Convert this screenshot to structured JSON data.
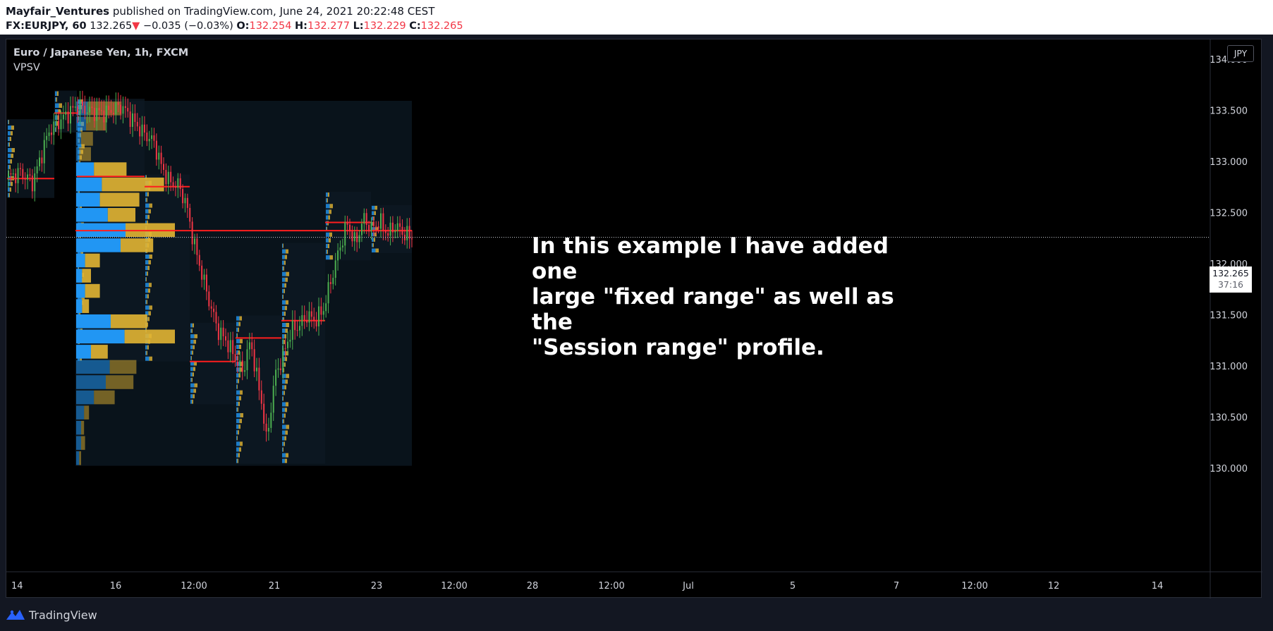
{
  "header": {
    "author": "Mayfair_Ventures",
    "published_text": " published on TradingView.com, June 24, 2021 20:22:48 CEST",
    "symbol": "FX:EURJPY, 60",
    "last_price": "132.265",
    "arrow": "▼",
    "change": "−0.035 (−0.03%)",
    "open_label": "O:",
    "open_value": "132.254",
    "high_label": "H:",
    "high_value": "132.277",
    "low_label": "L:",
    "low_value": "132.229",
    "close_label": "C:",
    "close_value": "132.265"
  },
  "legend": {
    "title": "Euro / Japanese Yen, 1h, FXCM",
    "indicator": "VPSV"
  },
  "annotation": {
    "lines": [
      "In this example I have added one",
      "large \"fixed range\" as well as the",
      "\"Session range\" profile."
    ]
  },
  "price_scale": {
    "currency_button": "JPY",
    "current_price": "132.265",
    "countdown": "37:16"
  },
  "footer": {
    "brand": "TradingView"
  },
  "colors": {
    "up": "#26a69a",
    "candle_up": "#4caf50",
    "candle_down": "#f23645",
    "poc": "#ff1e1e",
    "volume_up": "#2196f3",
    "volume_down": "#e2b533",
    "background": "#000000"
  },
  "chart_data": {
    "type": "candlestick",
    "title": "Euro / Japanese Yen, 1h, FXCM",
    "indicator": "VPSV",
    "y_axis": {
      "ticks": [
        "134.000",
        "133.500",
        "133.000",
        "132.500",
        "132.000",
        "131.500",
        "131.000",
        "130.500",
        "130.000"
      ],
      "ylim": [
        129.75,
        134.2
      ]
    },
    "x_axis": {
      "ticks": [
        "14",
        "16",
        "12:00",
        "21",
        "23",
        "12:00",
        "28",
        "12:00",
        "Jul",
        "5",
        "7",
        "12:00",
        "12",
        "14"
      ]
    },
    "last_price": 132.265,
    "fixed_range_profile": {
      "poc_price": 132.33,
      "rows": [
        {
          "price": 133.48,
          "up": 0.12,
          "down": 0.34
        },
        {
          "price": 133.34,
          "up": 0.1,
          "down": 0.2
        },
        {
          "price": 133.2,
          "up": 0.05,
          "down": 0.12
        },
        {
          "price": 133.06,
          "up": 0.03,
          "down": 0.12
        },
        {
          "price": 132.92,
          "up": 0.18,
          "down": 0.33
        },
        {
          "price": 132.77,
          "up": 0.26,
          "down": 0.63
        },
        {
          "price": 132.63,
          "up": 0.24,
          "down": 0.4
        },
        {
          "price": 132.48,
          "up": 0.32,
          "down": 0.28
        },
        {
          "price": 132.33,
          "up": 0.5,
          "down": 0.5
        },
        {
          "price": 132.18,
          "up": 0.45,
          "down": 0.33
        },
        {
          "price": 132.03,
          "up": 0.09,
          "down": 0.15
        },
        {
          "price": 131.88,
          "up": 0.06,
          "down": 0.09
        },
        {
          "price": 131.73,
          "up": 0.09,
          "down": 0.15
        },
        {
          "price": 131.58,
          "up": 0.06,
          "down": 0.07
        },
        {
          "price": 131.43,
          "up": 0.35,
          "down": 0.37
        },
        {
          "price": 131.28,
          "up": 0.49,
          "down": 0.51
        },
        {
          "price": 131.13,
          "up": 0.15,
          "down": 0.17
        },
        {
          "price": 130.98,
          "up": 0.34,
          "down": 0.27
        },
        {
          "price": 130.84,
          "up": 0.3,
          "down": 0.28
        },
        {
          "price": 130.69,
          "up": 0.18,
          "down": 0.21
        },
        {
          "price": 130.54,
          "up": 0.08,
          "down": 0.05
        },
        {
          "price": 130.4,
          "up": 0.05,
          "down": 0.03
        },
        {
          "price": 130.25,
          "up": 0.05,
          "down": 0.04
        },
        {
          "price": 130.1,
          "up": 0.03,
          "down": 0.02
        }
      ]
    },
    "session_profiles": [
      {
        "top": 133.42,
        "bottom": 132.65,
        "poc": 132.84
      },
      {
        "top": 133.7,
        "bottom": 133.29,
        "poc": 133.48
      },
      {
        "top": 133.62,
        "bottom": 131.05,
        "poc": 132.86
      },
      {
        "top": 132.88,
        "bottom": 131.05,
        "poc": 132.76
      },
      {
        "top": 131.43,
        "bottom": 130.63,
        "poc": 131.05
      },
      {
        "top": 131.5,
        "bottom": 130.05,
        "poc": 131.28
      },
      {
        "top": 132.21,
        "bottom": 130.05,
        "poc": 131.45
      },
      {
        "top": 132.71,
        "bottom": 132.04,
        "poc": 132.41
      },
      {
        "top": 132.58,
        "bottom": 132.11,
        "poc": 132.33
      }
    ],
    "close_path": [
      {
        "t": 0.0,
        "p": 132.85
      },
      {
        "t": 0.03,
        "p": 132.9
      },
      {
        "t": 0.06,
        "p": 132.8
      },
      {
        "t": 0.1,
        "p": 133.3
      },
      {
        "t": 0.14,
        "p": 133.45
      },
      {
        "t": 0.17,
        "p": 133.55
      },
      {
        "t": 0.2,
        "p": 133.5
      },
      {
        "t": 0.24,
        "p": 133.48
      },
      {
        "t": 0.28,
        "p": 133.55
      },
      {
        "t": 0.3,
        "p": 133.45
      },
      {
        "t": 0.33,
        "p": 133.3
      },
      {
        "t": 0.36,
        "p": 133.2
      },
      {
        "t": 0.38,
        "p": 132.95
      },
      {
        "t": 0.4,
        "p": 132.8
      },
      {
        "t": 0.42,
        "p": 132.78
      },
      {
        "t": 0.44,
        "p": 132.6
      },
      {
        "t": 0.46,
        "p": 132.2
      },
      {
        "t": 0.48,
        "p": 131.9
      },
      {
        "t": 0.5,
        "p": 131.6
      },
      {
        "t": 0.52,
        "p": 131.35
      },
      {
        "t": 0.54,
        "p": 131.25
      },
      {
        "t": 0.56,
        "p": 131.1
      },
      {
        "t": 0.58,
        "p": 130.95
      },
      {
        "t": 0.6,
        "p": 131.25
      },
      {
        "t": 0.62,
        "p": 130.8
      },
      {
        "t": 0.63,
        "p": 130.6
      },
      {
        "t": 0.64,
        "p": 130.25
      },
      {
        "t": 0.66,
        "p": 130.9
      },
      {
        "t": 0.68,
        "p": 131.1
      },
      {
        "t": 0.7,
        "p": 131.35
      },
      {
        "t": 0.72,
        "p": 131.4
      },
      {
        "t": 0.74,
        "p": 131.5
      },
      {
        "t": 0.76,
        "p": 131.45
      },
      {
        "t": 0.78,
        "p": 131.55
      },
      {
        "t": 0.8,
        "p": 131.85
      },
      {
        "t": 0.82,
        "p": 132.15
      },
      {
        "t": 0.84,
        "p": 132.4
      },
      {
        "t": 0.86,
        "p": 132.2
      },
      {
        "t": 0.88,
        "p": 132.45
      },
      {
        "t": 0.9,
        "p": 132.35
      },
      {
        "t": 0.92,
        "p": 132.42
      },
      {
        "t": 0.94,
        "p": 132.3
      },
      {
        "t": 0.96,
        "p": 132.38
      },
      {
        "t": 0.98,
        "p": 132.3
      },
      {
        "t": 1.0,
        "p": 132.265
      }
    ]
  }
}
